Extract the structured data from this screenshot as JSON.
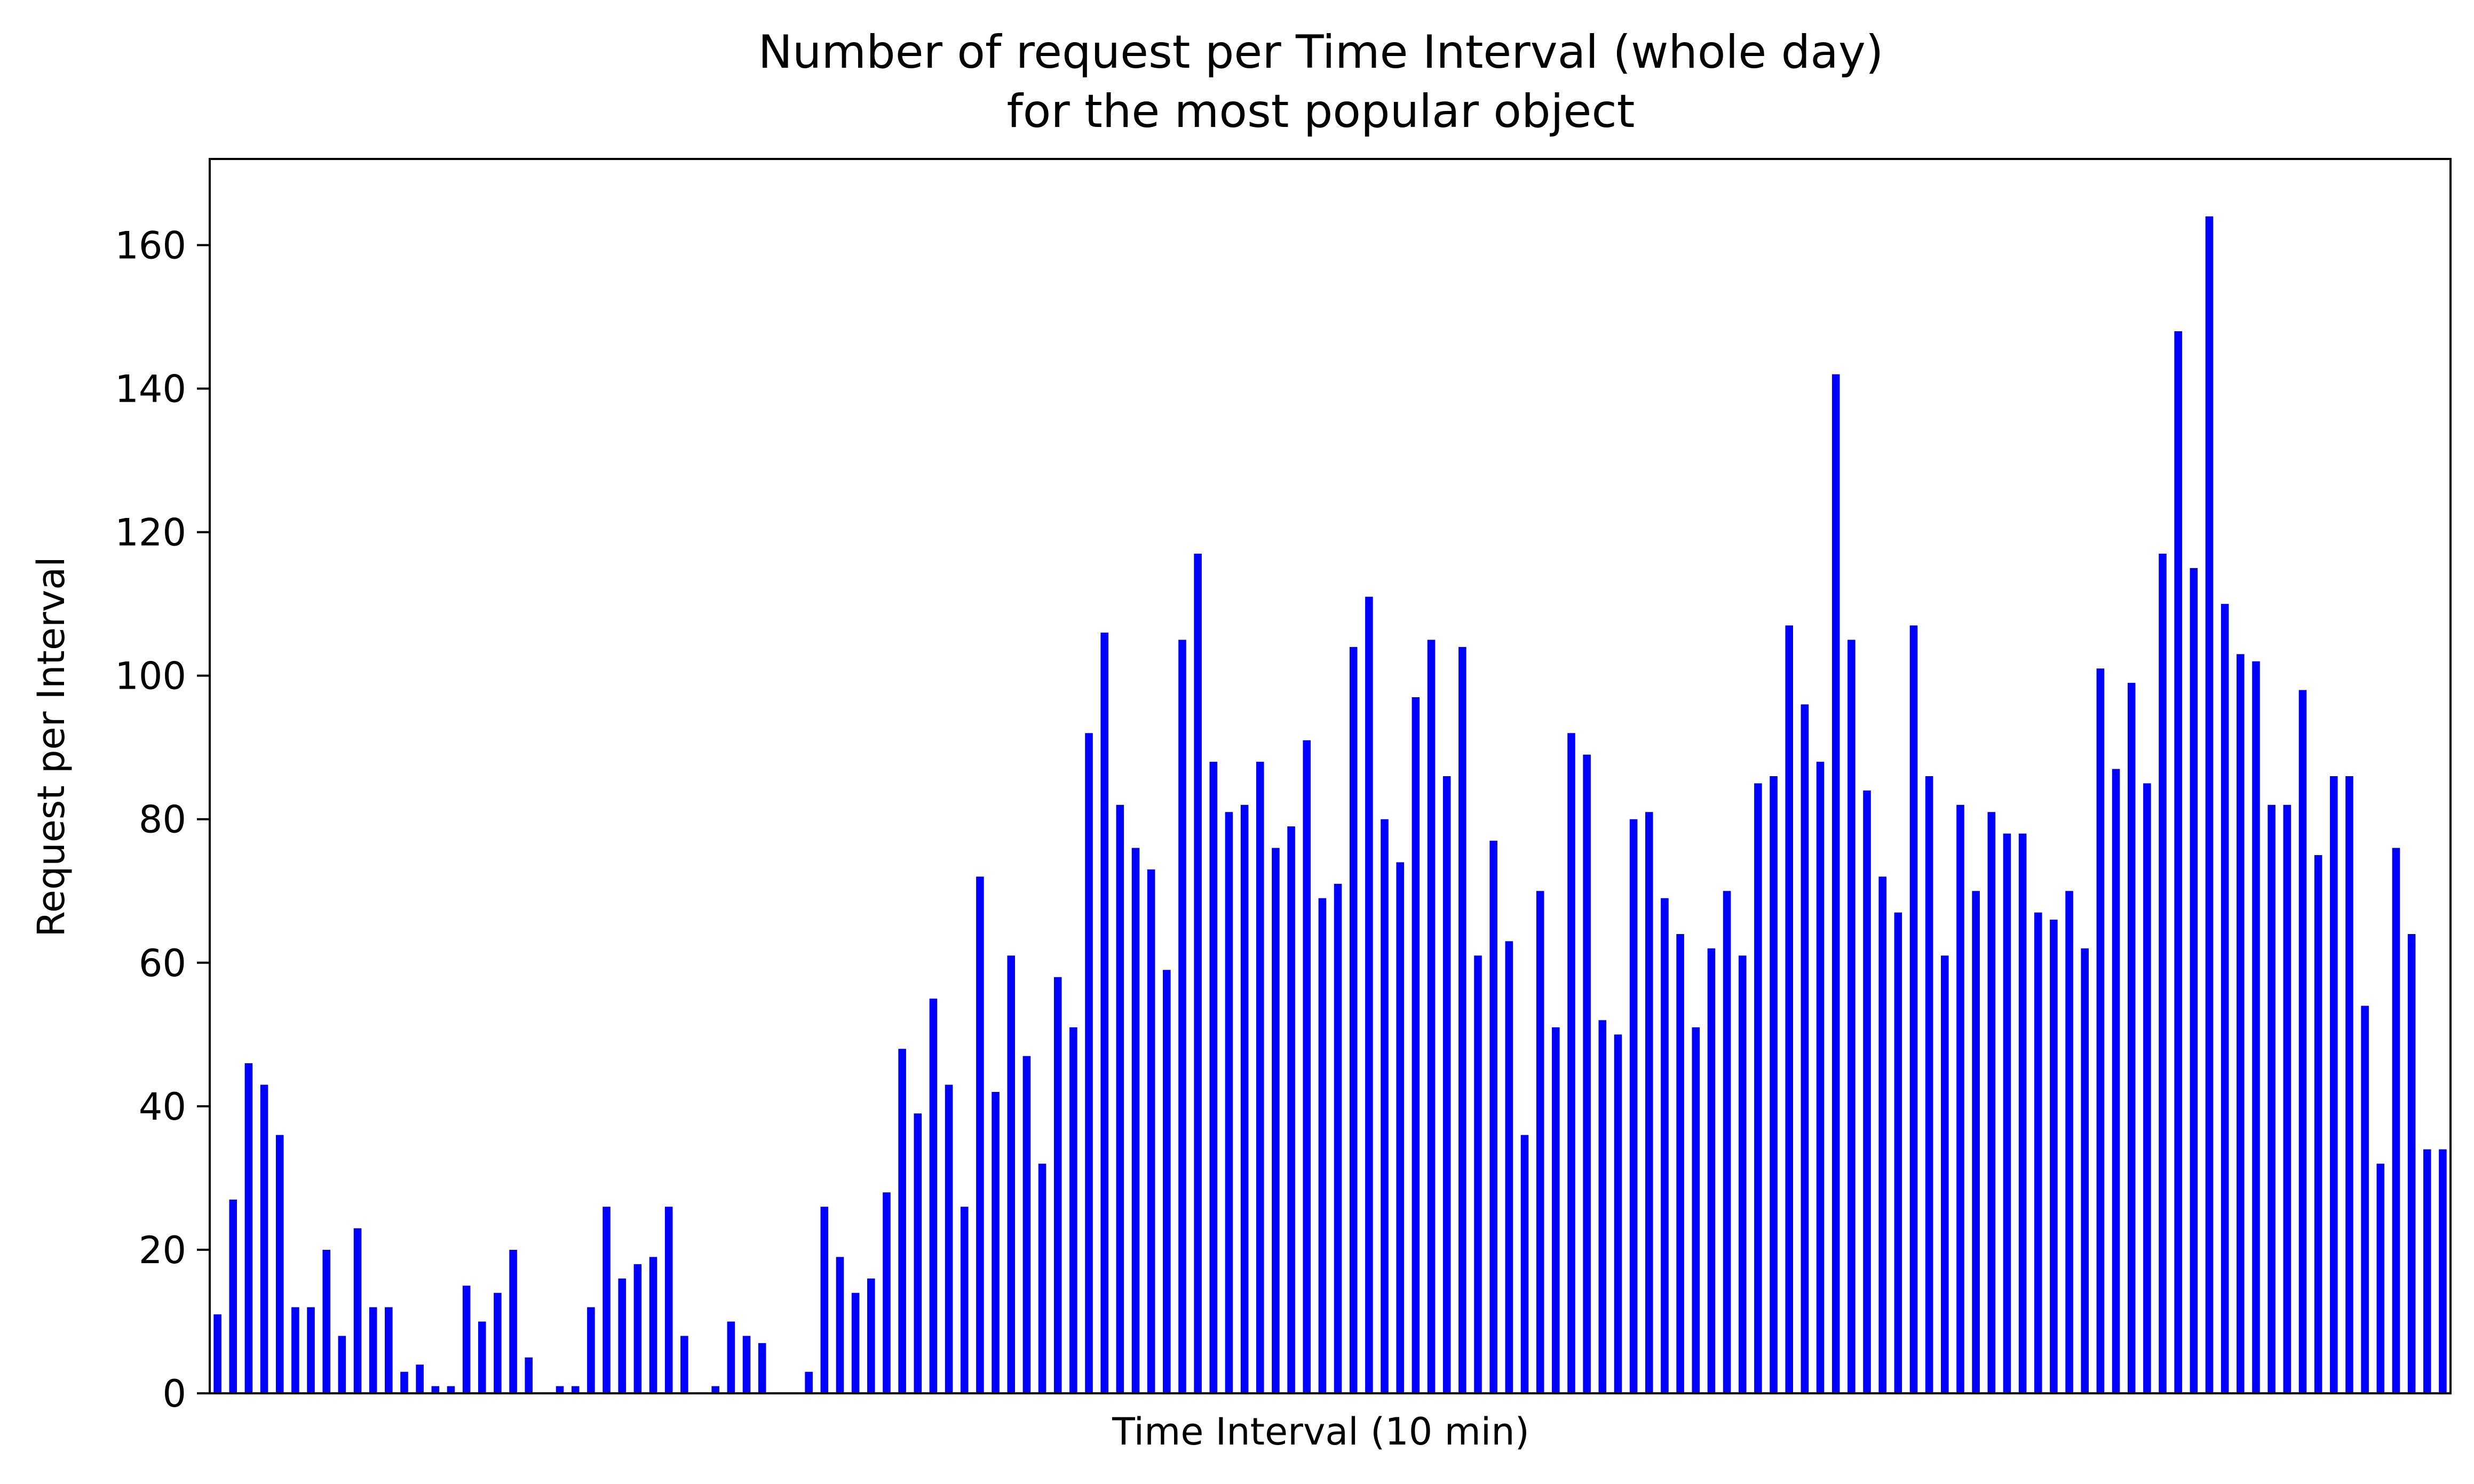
{
  "chart_data": {
    "type": "bar",
    "title": "Number of request per Time Interval (whole day)",
    "subtitle": "for the most popular object",
    "xlabel": "Time Interval (10 min)",
    "ylabel": "Request per Interval",
    "ylim": [
      0,
      172
    ],
    "yticks": [
      0,
      20,
      40,
      60,
      80,
      100,
      120,
      140,
      160
    ],
    "xticks_shown": false,
    "grid": false,
    "legend": "none",
    "bar_color": "#0000ff",
    "values": [
      11,
      27,
      46,
      43,
      36,
      12,
      12,
      20,
      8,
      23,
      12,
      12,
      3,
      4,
      1,
      1,
      15,
      10,
      14,
      20,
      5,
      0,
      1,
      1,
      12,
      26,
      16,
      18,
      19,
      26,
      8,
      0,
      1,
      10,
      8,
      7,
      0,
      0,
      3,
      26,
      19,
      14,
      16,
      28,
      48,
      39,
      55,
      43,
      26,
      72,
      42,
      61,
      47,
      32,
      58,
      51,
      92,
      106,
      82,
      76,
      73,
      59,
      105,
      117,
      88,
      81,
      82,
      88,
      76,
      79,
      91,
      69,
      71,
      104,
      111,
      80,
      74,
      97,
      105,
      86,
      104,
      61,
      77,
      63,
      36,
      70,
      51,
      92,
      89,
      52,
      50,
      80,
      81,
      69,
      64,
      51,
      62,
      70,
      61,
      85,
      86,
      107,
      96,
      88,
      142,
      105,
      84,
      72,
      67,
      107,
      86,
      61,
      82,
      70,
      81,
      78,
      78,
      67,
      66,
      70,
      62,
      101,
      87,
      99,
      85,
      117,
      148,
      115,
      164,
      110,
      103,
      102,
      82,
      82,
      98,
      75,
      86,
      86,
      54,
      32,
      76,
      64,
      34,
      34
    ]
  }
}
